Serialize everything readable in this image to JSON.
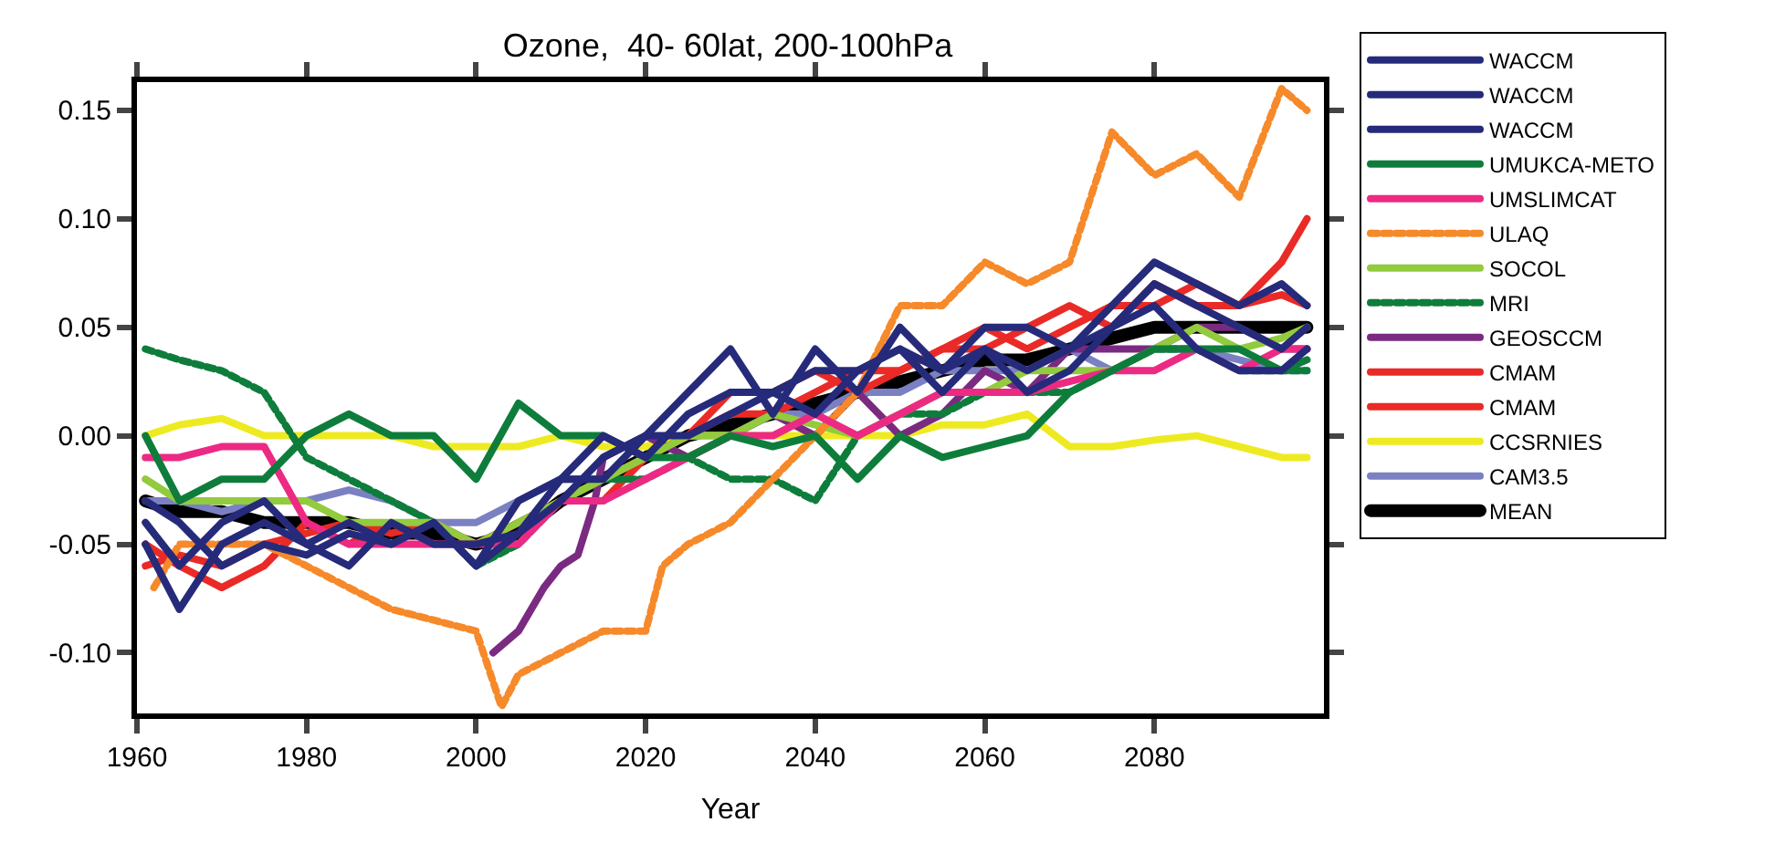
{
  "chart_data": {
    "type": "line",
    "title": "Ozone,  40- 60lat, 200-100hPa",
    "xlabel": "Year",
    "x": [
      1961,
      1965,
      1970,
      1975,
      1980,
      1985,
      1990,
      1995,
      2000,
      2005,
      2010,
      2015,
      2020,
      2025,
      2030,
      2035,
      2040,
      2045,
      2050,
      2055,
      2060,
      2065,
      2070,
      2075,
      2080,
      2085,
      2090,
      2095,
      2098
    ],
    "xlim": [
      1960,
      2100
    ],
    "xticks": [
      1960,
      1980,
      2000,
      2020,
      2040,
      2060,
      2080
    ],
    "ylim": [
      -0.128,
      0.163
    ],
    "yticks": [
      {
        "value": -0.1,
        "label": "-0.10"
      },
      {
        "value": -0.05,
        "label": "-0.05"
      },
      {
        "value": 0,
        "label": "0.00"
      },
      {
        "value": 0.05,
        "label": "0.05"
      },
      {
        "value": 0.1,
        "label": "0.10"
      },
      {
        "value": 0.15,
        "label": "0.15"
      }
    ],
    "legend": "right",
    "marker": "none",
    "line_style": "solid",
    "series": [
      {
        "name": "WACCM",
        "color": "#262a7a",
        "values": [
          -0.04,
          -0.06,
          -0.04,
          -0.03,
          -0.05,
          -0.04,
          -0.05,
          -0.04,
          -0.06,
          -0.03,
          -0.02,
          -0.02,
          0.0,
          0.0,
          0.01,
          0.02,
          0.03,
          0.03,
          0.04,
          0.03,
          0.05,
          0.05,
          0.04,
          0.06,
          0.08,
          0.07,
          0.06,
          0.07,
          0.06
        ]
      },
      {
        "name": "WACCM",
        "color": "#262a7a",
        "values": [
          -0.05,
          -0.08,
          -0.05,
          -0.04,
          -0.05,
          -0.06,
          -0.04,
          -0.05,
          -0.05,
          -0.045,
          -0.02,
          0.0,
          -0.01,
          0.01,
          0.02,
          0.02,
          0.01,
          0.03,
          0.04,
          0.02,
          0.04,
          0.03,
          0.04,
          0.05,
          0.07,
          0.06,
          0.05,
          0.04,
          0.05
        ]
      },
      {
        "name": "WACCM",
        "color": "#262a7a",
        "values": [
          -0.03,
          -0.04,
          -0.06,
          -0.05,
          -0.055,
          -0.045,
          -0.05,
          -0.04,
          -0.06,
          -0.045,
          -0.03,
          -0.01,
          0.0,
          0.02,
          0.04,
          0.01,
          0.04,
          0.02,
          0.05,
          0.03,
          0.04,
          0.02,
          0.03,
          0.05,
          0.06,
          0.04,
          0.03,
          0.03,
          0.04
        ]
      },
      {
        "name": "UMUKCA-METO",
        "color": "#0e7d3c",
        "values": [
          0.0,
          -0.03,
          -0.02,
          -0.02,
          0.0,
          0.01,
          0.0,
          0.0,
          -0.02,
          0.015,
          0.0,
          0.0,
          -0.01,
          -0.01,
          0.0,
          -0.005,
          0.0,
          -0.02,
          0.0,
          -0.01,
          -0.005,
          0.0,
          0.02,
          0.03,
          0.04,
          0.04,
          0.04,
          0.03,
          0.035
        ]
      },
      {
        "name": "UMSLIMCAT",
        "color": "#ec2a83",
        "values": [
          -0.01,
          -0.01,
          -0.005,
          -0.005,
          -0.04,
          -0.05,
          -0.05,
          -0.05,
          -0.05,
          -0.05,
          -0.03,
          -0.03,
          -0.02,
          -0.01,
          0.0,
          0.0,
          0.01,
          0.0,
          0.01,
          0.02,
          0.02,
          0.02,
          0.025,
          0.03,
          0.03,
          0.04,
          0.03,
          0.04,
          0.04
        ]
      },
      {
        "name": "ULAQ",
        "color": "#f6892a",
        "line_style": "dashed",
        "x": [
          1962,
          1965,
          1970,
          1975,
          1980,
          1985,
          1990,
          1995,
          2000,
          2003,
          2005,
          2010,
          2015,
          2020,
          2022,
          2025,
          2030,
          2035,
          2040,
          2045,
          2050,
          2055,
          2060,
          2065,
          2070,
          2075,
          2080,
          2085,
          2090,
          2095,
          2098
        ],
        "values": [
          -0.07,
          -0.05,
          -0.05,
          -0.05,
          -0.06,
          -0.07,
          -0.08,
          -0.085,
          -0.09,
          -0.125,
          -0.11,
          -0.1,
          -0.09,
          -0.09,
          -0.06,
          -0.05,
          -0.04,
          -0.02,
          0.0,
          0.02,
          0.06,
          0.06,
          0.08,
          0.07,
          0.08,
          0.14,
          0.12,
          0.13,
          0.11,
          0.16,
          0.15
        ]
      },
      {
        "name": "SOCOL",
        "color": "#92cb3e",
        "values": [
          -0.02,
          -0.03,
          -0.03,
          -0.03,
          -0.03,
          -0.04,
          -0.04,
          -0.04,
          -0.05,
          -0.04,
          -0.03,
          -0.02,
          -0.01,
          0.0,
          0.0,
          0.01,
          0.005,
          0.0,
          0.01,
          0.02,
          0.02,
          0.03,
          0.03,
          0.03,
          0.04,
          0.05,
          0.04,
          0.045,
          0.05
        ]
      },
      {
        "name": "MRI",
        "color": "#0e7d3c",
        "line_style": "dashed",
        "values": [
          0.04,
          0.035,
          0.03,
          0.02,
          -0.01,
          -0.02,
          -0.03,
          -0.04,
          -0.06,
          -0.05,
          -0.03,
          -0.02,
          -0.02,
          -0.01,
          -0.02,
          -0.02,
          -0.03,
          0.0,
          0.01,
          0.01,
          0.02,
          0.02,
          0.02,
          0.03,
          0.04,
          0.04,
          0.03,
          0.03,
          0.03
        ]
      },
      {
        "name": "GEOSCCM",
        "color": "#7a2a80",
        "x": [
          2002,
          2005,
          2008,
          2010,
          2012,
          2014,
          2015,
          2020,
          2025,
          2030,
          2035,
          2040,
          2045,
          2050,
          2055,
          2060,
          2065,
          2070,
          2075,
          2080,
          2085,
          2090,
          2095,
          2098
        ],
        "values": [
          -0.1,
          -0.09,
          -0.07,
          -0.06,
          -0.055,
          -0.03,
          -0.01,
          0.0,
          -0.01,
          0.0,
          0.01,
          0.0,
          0.02,
          0.0,
          0.01,
          0.03,
          0.02,
          0.04,
          0.04,
          0.04,
          0.05,
          0.05,
          0.04,
          0.04
        ]
      },
      {
        "name": "CMAM",
        "color": "#ea2a26",
        "values": [
          -0.05,
          -0.06,
          -0.07,
          -0.06,
          -0.04,
          -0.05,
          -0.04,
          -0.05,
          -0.05,
          -0.04,
          -0.03,
          -0.02,
          -0.01,
          0.0,
          0.01,
          0.01,
          0.02,
          0.03,
          0.03,
          0.04,
          0.04,
          0.05,
          0.06,
          0.05,
          0.07,
          0.06,
          0.06,
          0.08,
          0.1
        ]
      },
      {
        "name": "CMAM",
        "color": "#ea2a26",
        "values": [
          -0.06,
          -0.055,
          -0.06,
          -0.05,
          -0.045,
          -0.04,
          -0.045,
          -0.04,
          -0.05,
          -0.04,
          -0.03,
          -0.03,
          -0.01,
          0.0,
          0.02,
          0.02,
          0.03,
          0.02,
          0.03,
          0.04,
          0.05,
          0.04,
          0.05,
          0.06,
          0.06,
          0.07,
          0.06,
          0.065,
          0.06
        ]
      },
      {
        "name": "CCSRNIES",
        "color": "#eeea22",
        "values": [
          0.0,
          0.005,
          0.008,
          0.0,
          0.0,
          0.0,
          0.0,
          -0.005,
          -0.005,
          -0.005,
          0.0,
          -0.005,
          -0.005,
          0.0,
          0.0,
          0.0,
          0.0,
          0.0,
          0.0,
          0.005,
          0.005,
          0.01,
          -0.005,
          -0.005,
          -0.002,
          0.0,
          -0.005,
          -0.01,
          -0.01
        ]
      },
      {
        "name": "CAM3.5",
        "color": "#7b80c2",
        "values": [
          -0.03,
          -0.03,
          -0.035,
          -0.03,
          -0.03,
          -0.025,
          -0.03,
          -0.04,
          -0.04,
          -0.03,
          -0.02,
          -0.02,
          -0.01,
          0.0,
          0.0,
          0.01,
          0.01,
          0.02,
          0.02,
          0.03,
          0.03,
          0.03,
          0.04,
          0.03,
          0.04,
          0.04,
          0.035,
          0.03,
          0.03
        ]
      },
      {
        "name": "MEAN",
        "color": "#000000",
        "values": [
          -0.03,
          -0.035,
          -0.035,
          -0.04,
          -0.04,
          -0.04,
          -0.045,
          -0.045,
          -0.05,
          -0.045,
          -0.03,
          -0.02,
          -0.01,
          0.0,
          0.005,
          0.01,
          0.015,
          0.02,
          0.025,
          0.03,
          0.035,
          0.035,
          0.04,
          0.045,
          0.05,
          0.05,
          0.05,
          0.05,
          0.05
        ]
      }
    ]
  }
}
